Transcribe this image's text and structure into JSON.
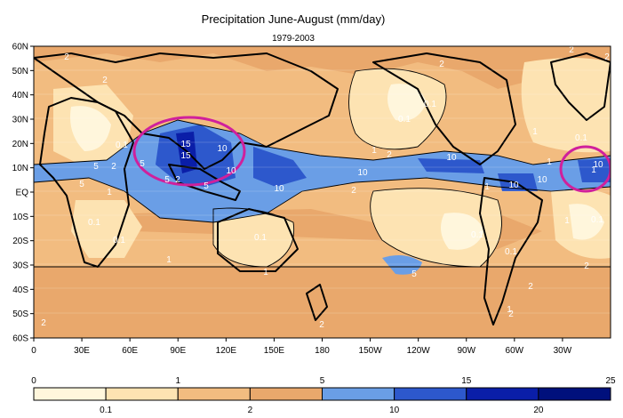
{
  "chart_data": {
    "type": "heatmap",
    "title": "Precipitation June-August (mm/day)",
    "subtitle": "1979-2003",
    "xlabel": "",
    "ylabel": "",
    "x_ticks": [
      "0",
      "30E",
      "60E",
      "90E",
      "120E",
      "150E",
      "180",
      "150W",
      "120W",
      "90W",
      "60W",
      "30W"
    ],
    "x_tick_values": [
      0,
      30,
      60,
      90,
      120,
      150,
      180,
      210,
      240,
      270,
      300,
      330
    ],
    "xlim": [
      0,
      360
    ],
    "y_ticks": [
      "60N",
      "50N",
      "40N",
      "30N",
      "20N",
      "10N",
      "EQ",
      "10S",
      "20S",
      "30S",
      "40S",
      "50S",
      "60S"
    ],
    "y_tick_values": [
      60,
      50,
      40,
      30,
      20,
      10,
      0,
      -10,
      -20,
      -30,
      -40,
      -50,
      -60
    ],
    "ylim": [
      -60,
      60
    ],
    "levels_top": [
      "0",
      "1",
      "5",
      "15",
      "25"
    ],
    "levels_bottom": [
      "0.1",
      "2",
      "10",
      "20"
    ],
    "level_values": [
      0,
      0.1,
      1,
      2,
      5,
      10,
      15,
      20,
      25
    ],
    "colorbar_colors": [
      "#fff6dc",
      "#fde3b2",
      "#f2bc80",
      "#e9a86c",
      "#6a9ee6",
      "#2d58cc",
      "#0a1ea8",
      "#00107c"
    ],
    "contour_labels": [
      "2",
      "2",
      "2",
      "2",
      "2",
      "2",
      "2",
      "2",
      "2",
      "2",
      "2",
      "2",
      "2",
      "2",
      "0.1",
      "0.1",
      "0.1",
      "0.1",
      "0.1",
      "0.1",
      "0.1",
      "0.1",
      "0.1",
      "0.1",
      "1",
      "1",
      "1",
      "1",
      "1",
      "1",
      "1",
      "1",
      "1",
      "1",
      "5",
      "5",
      "5",
      "5",
      "5",
      "5",
      "10",
      "10",
      "10",
      "10",
      "10",
      "10",
      "10",
      "10",
      "15",
      "15"
    ],
    "grid": true,
    "annotations": [
      "circle-indian-monsoon",
      "circle-east-pacific"
    ]
  }
}
